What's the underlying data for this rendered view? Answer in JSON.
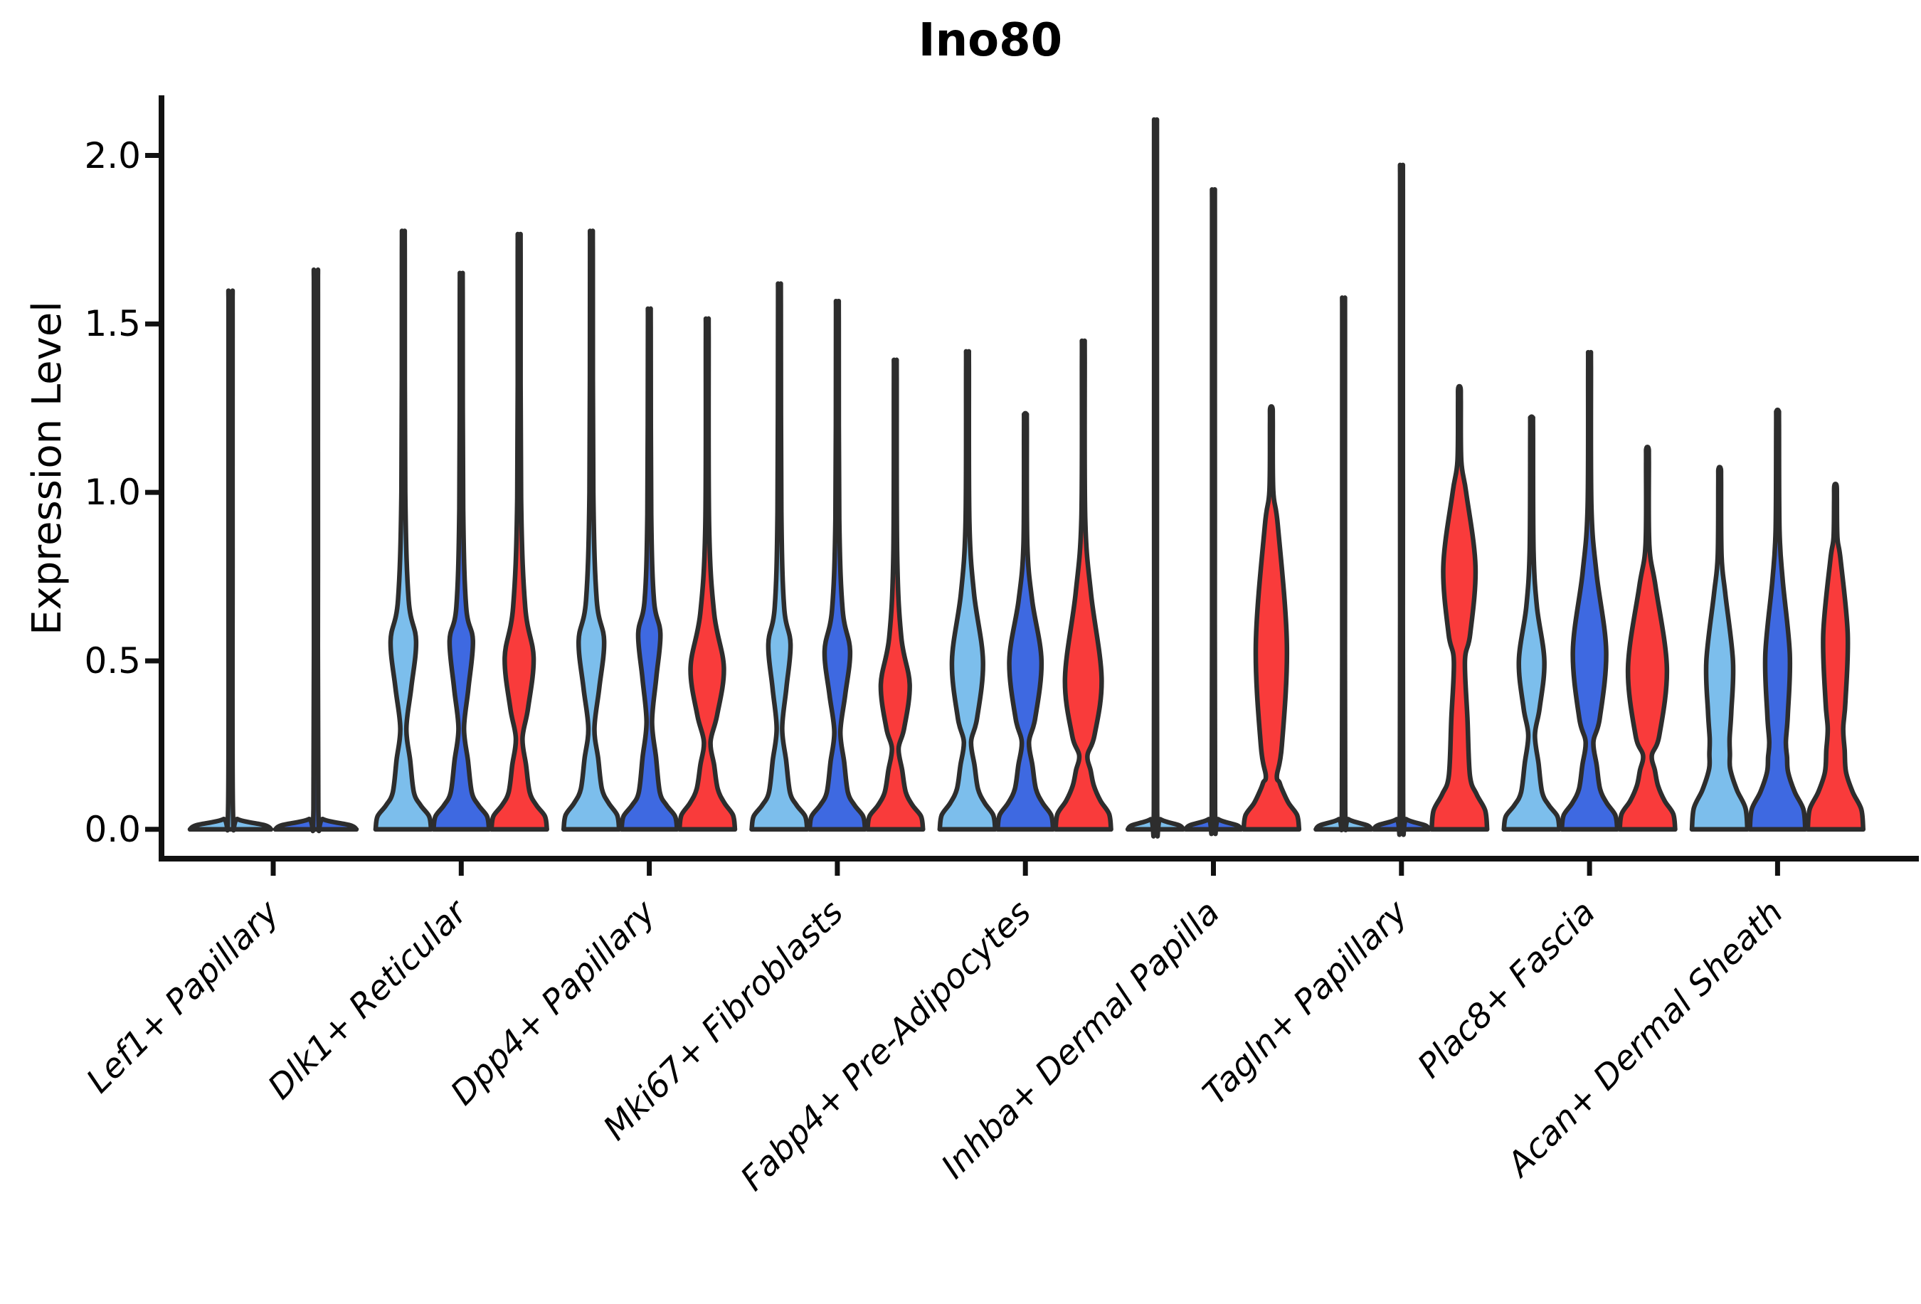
{
  "chart_data": {
    "type": "violin",
    "title": "Ino80",
    "ylabel": "Expression Level",
    "yticks": [
      "0.0",
      "0.5",
      "1.0",
      "1.5",
      "2.0"
    ],
    "ytick_values": [
      0.0,
      0.5,
      1.0,
      1.5,
      2.0
    ],
    "ylim": [
      -0.087,
      2.17
    ],
    "grid": false,
    "x_label_rotation_deg": 45,
    "legend": "none",
    "palette": {
      "light_blue": "#7CBEEC",
      "dark_blue": "#3E69E1",
      "red": "#F93B3B",
      "outline": "#2D2D2D",
      "axis": "#111111"
    },
    "categories": [
      {
        "label": "Lef1+ Papillary",
        "violins": [
          {
            "color": "light_blue",
            "flat": true,
            "max_expression": 1.57
          },
          {
            "color": "dark_blue",
            "flat": true,
            "max_expression": 1.63
          }
        ]
      },
      {
        "label": "Dlk1+ Reticular",
        "violins": [
          {
            "color": "light_blue",
            "max_expression": 1.75,
            "flare": 0.11,
            "waist": [
              0.3,
              0.11
            ],
            "bulge": [
              0.42,
              0.56,
              0.68,
              0.46
            ]
          },
          {
            "color": "dark_blue",
            "max_expression": 1.63,
            "flare": 0.11,
            "waist": [
              0.3,
              0.1
            ],
            "bulge": [
              0.42,
              0.56,
              0.66,
              0.42
            ]
          },
          {
            "color": "red",
            "max_expression": 1.74,
            "flare": 0.11,
            "waist": [
              0.27,
              0.12
            ],
            "bulge": [
              0.36,
              0.51,
              0.66,
              0.52
            ]
          }
        ]
      },
      {
        "label": "Dpp4+ Papillary",
        "violins": [
          {
            "color": "light_blue",
            "max_expression": 1.75,
            "flare": 0.12,
            "waist": [
              0.3,
              0.11
            ],
            "bulge": [
              0.42,
              0.56,
              0.68,
              0.46
            ]
          },
          {
            "color": "dark_blue",
            "max_expression": 1.53,
            "flare": 0.11,
            "waist": [
              0.32,
              0.1
            ],
            "bulge": [
              0.45,
              0.58,
              0.68,
              0.4
            ]
          },
          {
            "color": "red",
            "max_expression": 1.5,
            "flare": 0.12,
            "waist": [
              0.26,
              0.12
            ],
            "bulge": [
              0.34,
              0.48,
              0.64,
              0.6
            ]
          }
        ]
      },
      {
        "label": "Mki67+ Fibroblasts",
        "violins": [
          {
            "color": "light_blue",
            "max_expression": 1.6,
            "flare": 0.11,
            "waist": [
              0.3,
              0.1
            ],
            "bulge": [
              0.42,
              0.55,
              0.66,
              0.4
            ]
          },
          {
            "color": "dark_blue",
            "max_expression": 1.55,
            "flare": 0.11,
            "waist": [
              0.29,
              0.11
            ],
            "bulge": [
              0.4,
              0.53,
              0.65,
              0.46
            ]
          },
          {
            "color": "red",
            "max_expression": 1.38,
            "flare": 0.11,
            "waist": [
              0.24,
              0.12
            ],
            "bulge": [
              0.3,
              0.43,
              0.57,
              0.52
            ]
          }
        ]
      },
      {
        "label": "Fabp4+ Pre-Adipocytes",
        "violins": [
          {
            "color": "light_blue",
            "max_expression": 1.41,
            "flare": 0.12,
            "waist": [
              0.26,
              0.13
            ],
            "bulge": [
              0.33,
              0.5,
              0.7,
              0.56
            ]
          },
          {
            "color": "dark_blue",
            "max_expression": 1.23,
            "flare": 0.12,
            "waist": [
              0.26,
              0.13
            ],
            "bulge": [
              0.33,
              0.5,
              0.68,
              0.58
            ]
          },
          {
            "color": "red",
            "max_expression": 1.44,
            "flare": 0.13,
            "waist": [
              0.22,
              0.15
            ],
            "bulge": [
              0.28,
              0.45,
              0.7,
              0.66
            ]
          }
        ]
      },
      {
        "label": "Inhba+ Dermal Papilla",
        "violins": [
          {
            "color": "light_blue",
            "flat": true,
            "max_expression": 2.06
          },
          {
            "color": "dark_blue",
            "flat": true,
            "max_expression": 1.86
          },
          {
            "color": "red",
            "max_expression": 1.25,
            "flare": 0.12,
            "waist": [
              0.16,
              0.2
            ],
            "bulge": [
              0.25,
              0.55,
              0.9,
              0.56
            ]
          }
        ]
      },
      {
        "label": "Tagln+ Papillary",
        "violins": [
          {
            "color": "light_blue",
            "flat": true,
            "max_expression": 1.55
          },
          {
            "color": "dark_blue",
            "flat": true,
            "max_expression": 1.93
          },
          {
            "color": "red",
            "max_expression": 1.31,
            "flare": 0.16,
            "waist": [
              0.5,
              0.2
            ],
            "bulge": [
              0.58,
              0.78,
              1.0,
              0.58
            ]
          }
        ]
      },
      {
        "label": "Plac8+ Fascia",
        "violins": [
          {
            "color": "light_blue",
            "max_expression": 1.22,
            "flare": 0.11,
            "waist": [
              0.28,
              0.12
            ],
            "bulge": [
              0.36,
              0.5,
              0.66,
              0.46
            ]
          },
          {
            "color": "dark_blue",
            "max_expression": 1.41,
            "flare": 0.12,
            "waist": [
              0.26,
              0.14
            ],
            "bulge": [
              0.33,
              0.53,
              0.76,
              0.6
            ]
          },
          {
            "color": "red",
            "max_expression": 1.13,
            "flare": 0.13,
            "waist": [
              0.22,
              0.16
            ],
            "bulge": [
              0.28,
              0.48,
              0.72,
              0.7
            ]
          }
        ]
      },
      {
        "label": "Acan+ Dermal Sheath",
        "violins": [
          {
            "color": "light_blue",
            "max_expression": 1.07,
            "flare": 0.18,
            "waist": [
              0.27,
              0.36
            ],
            "bulge": [
              0.35,
              0.5,
              0.7,
              0.48
            ]
          },
          {
            "color": "dark_blue",
            "max_expression": 1.24,
            "flare": 0.17,
            "waist": [
              0.26,
              0.3
            ],
            "bulge": [
              0.34,
              0.52,
              0.74,
              0.44
            ]
          },
          {
            "color": "red",
            "max_expression": 1.02,
            "flare": 0.17,
            "waist": [
              0.3,
              0.28
            ],
            "bulge": [
              0.38,
              0.58,
              0.8,
              0.44
            ]
          }
        ]
      }
    ]
  }
}
